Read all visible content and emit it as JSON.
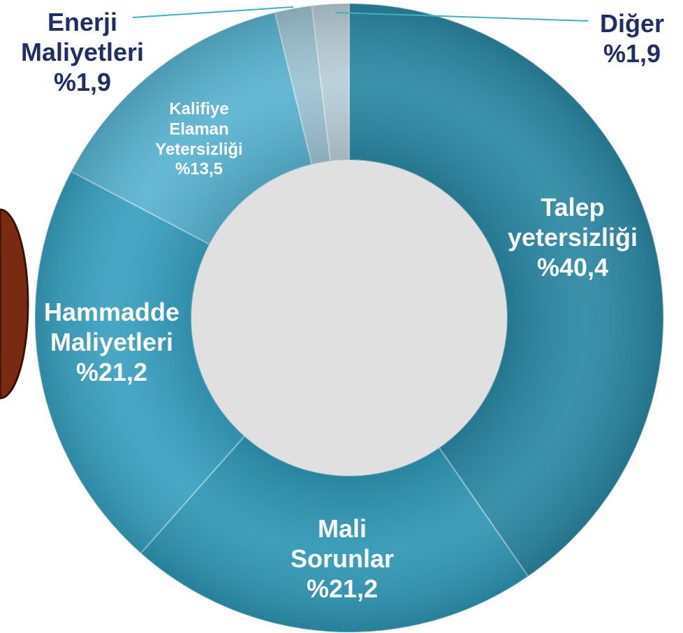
{
  "chart_data": {
    "type": "donut",
    "categories": [
      "Talep yetersizliği",
      "Mali Sorunlar",
      "Hammadde Maliyetleri",
      "Kalifiye Elaman Yetersizliği",
      "Enerji Maliyetleri",
      "Diğer"
    ],
    "values": [
      40.4,
      21.2,
      21.2,
      13.5,
      1.9,
      1.9
    ],
    "value_labels": [
      "%40,4",
      "%21,2",
      "%21,2",
      "%13,5",
      "%1,9",
      "%1,9"
    ],
    "colors": [
      "#2a87a3",
      "#2e96b4",
      "#37a0c0",
      "#58b3d1",
      "#9cc2d1",
      "#b7cdd6"
    ]
  }
}
